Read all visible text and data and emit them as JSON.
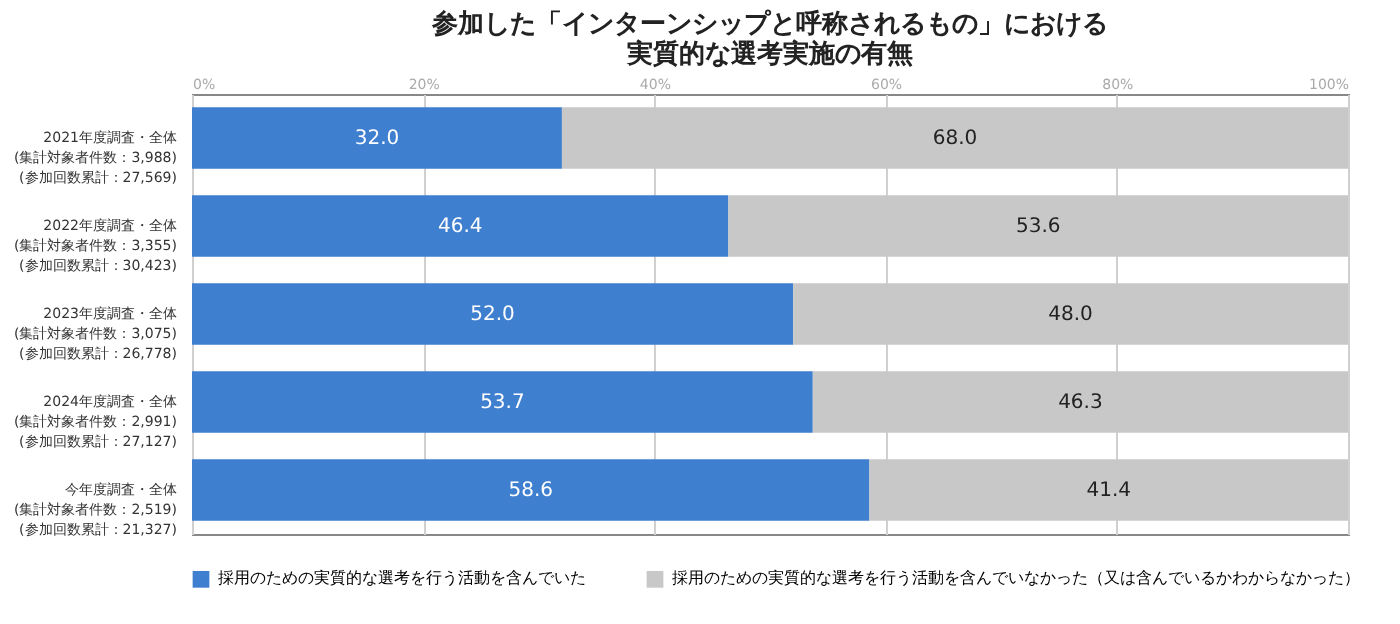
{
  "chart_data": {
    "type": "bar",
    "orientation": "horizontal",
    "stacked": true,
    "title": "参加した「インターンシップと呼称されるもの」における実質的な選考実施の有無",
    "categories": [
      "2021年度調査・全体\n(集計対象者件数：3,988)\n(参加回数累計：27,569)",
      "2022年度調査・全体\n(集計対象者件数：3,355)\n(参加回数累計：30,423)",
      "2023年度調査・全体\n(集計対象者件数：3,075)\n(参加回数累計：26,778)",
      "2024年度調査・全体\n(集計対象者件数：2,991)\n(参加回数累計：27,127)",
      "今年度調査・全体\n(集計対象者件数：2,519)\n(参加回数累計：21,327)"
    ],
    "series": [
      {
        "name": "採用のための実質的な選考を行う活動を含んでいた",
        "color": "#3f7fcf",
        "values": [
          32.0,
          46.4,
          52.0,
          53.7,
          58.6
        ],
        "value_labels": [
          "32.0",
          "46.4",
          "52.0",
          "53.7",
          "58.6"
        ]
      },
      {
        "name": "採用のための実質的な選考を行う活動を含んでいなかった（又は含んでいるかわからなかった）",
        "color": "#c8c8c8",
        "values": [
          68.0,
          53.6,
          48.0,
          46.3,
          41.4
        ],
        "value_labels": [
          "68.0",
          "53.6",
          "48.0",
          "46.3",
          "41.4"
        ]
      }
    ],
    "xlim": [
      0,
      100
    ],
    "xticks": [
      {
        "value": 0,
        "label": "0%"
      },
      {
        "value": 20,
        "label": "20%"
      },
      {
        "value": 40,
        "label": "40%"
      },
      {
        "value": 60,
        "label": "60%"
      },
      {
        "value": 80,
        "label": "80%"
      },
      {
        "value": 100,
        "label": "100%"
      }
    ],
    "grid": "x",
    "legend": "bottom"
  }
}
